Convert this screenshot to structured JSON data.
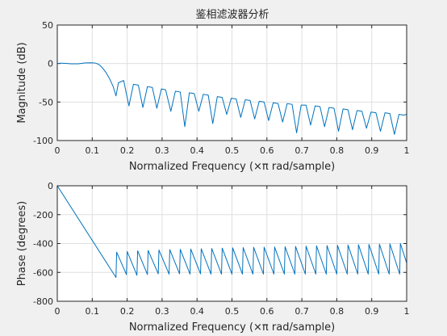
{
  "figure_title": "鉴相滤波器分析",
  "chart_data": [
    {
      "type": "line",
      "title": "鉴相滤波器分析",
      "xlabel": "Normalized Frequency  (×π rad/sample)",
      "ylabel": "Magnitude (dB)",
      "xlim": [
        0,
        1
      ],
      "ylim": [
        -100,
        50
      ],
      "xticks": [
        "0",
        "0.1",
        "0.2",
        "0.3",
        "0.4",
        "0.5",
        "0.6",
        "0.7",
        "0.8",
        "0.9",
        "1"
      ],
      "yticks": [
        "-100",
        "-50",
        "0",
        "50"
      ],
      "grid": true,
      "line_color": "#0072bd",
      "series": [
        {
          "x": [
            0,
            0.01,
            0.02,
            0.04,
            0.06,
            0.08,
            0.1,
            0.11,
            0.12,
            0.13,
            0.14,
            0.15,
            0.16,
            0.168,
            0.175,
            0.19,
            0.205,
            0.218,
            0.232,
            0.245,
            0.258,
            0.272,
            0.285,
            0.298,
            0.31,
            0.325,
            0.338,
            0.352,
            0.365,
            0.378,
            0.392,
            0.405,
            0.418,
            0.432,
            0.445,
            0.458,
            0.472,
            0.485,
            0.498,
            0.512,
            0.525,
            0.538,
            0.552,
            0.565,
            0.578,
            0.592,
            0.605,
            0.618,
            0.632,
            0.645,
            0.658,
            0.672,
            0.685,
            0.698,
            0.712,
            0.725,
            0.738,
            0.752,
            0.765,
            0.778,
            0.792,
            0.805,
            0.818,
            0.832,
            0.845,
            0.858,
            0.872,
            0.885,
            0.898,
            0.912,
            0.925,
            0.938,
            0.952,
            0.965,
            0.978,
            0.992,
            1.0
          ],
          "y": [
            0,
            0.5,
            0.3,
            -0.4,
            -0.3,
            0.8,
            1,
            0.5,
            -1.5,
            -6,
            -12,
            -20,
            -30,
            -42,
            -25,
            -22,
            -55,
            -27,
            -28,
            -57,
            -30,
            -31,
            -58,
            -33,
            -34,
            -62,
            -36,
            -37,
            -82,
            -38,
            -39,
            -62,
            -40,
            -41,
            -78,
            -43,
            -44,
            -66,
            -45,
            -46,
            -70,
            -47,
            -48,
            -72,
            -49,
            -50,
            -74,
            -51,
            -52,
            -76,
            -52,
            -53,
            -90,
            -54,
            -54,
            -80,
            -55,
            -56,
            -82,
            -57,
            -58,
            -88,
            -59,
            -60,
            -86,
            -61,
            -62,
            -84,
            -63,
            -64,
            -88,
            -64,
            -65,
            -92,
            -66,
            -67,
            -66
          ]
        }
      ]
    },
    {
      "type": "line",
      "title": "",
      "xlabel": "Normalized Frequency  (×π rad/sample)",
      "ylabel": "Phase (degrees)",
      "xlim": [
        0,
        1
      ],
      "ylim": [
        -800,
        0
      ],
      "xticks": [
        "0",
        "0.1",
        "0.2",
        "0.3",
        "0.4",
        "0.5",
        "0.6",
        "0.7",
        "0.8",
        "0.9",
        "1"
      ],
      "yticks": [
        "-800",
        "-600",
        "-400",
        "-200",
        "0"
      ],
      "grid": true,
      "line_color": "#0072bd",
      "series": [
        {
          "x": [
            0,
            0.168,
            0.17,
            0.198,
            0.2,
            0.228,
            0.23,
            0.258,
            0.26,
            0.289,
            0.291,
            0.32,
            0.322,
            0.35,
            0.352,
            0.38,
            0.382,
            0.41,
            0.412,
            0.44,
            0.442,
            0.47,
            0.472,
            0.5,
            0.502,
            0.53,
            0.532,
            0.56,
            0.562,
            0.59,
            0.592,
            0.62,
            0.622,
            0.65,
            0.652,
            0.68,
            0.682,
            0.71,
            0.712,
            0.74,
            0.742,
            0.77,
            0.772,
            0.8,
            0.802,
            0.83,
            0.832,
            0.86,
            0.862,
            0.89,
            0.892,
            0.92,
            0.922,
            0.95,
            0.952,
            0.98,
            0.982,
            1.0
          ],
          "y": [
            0,
            -635,
            -460,
            -615,
            -455,
            -620,
            -450,
            -615,
            -448,
            -610,
            -445,
            -612,
            -442,
            -610,
            -440,
            -612,
            -438,
            -610,
            -436,
            -612,
            -434,
            -612,
            -432,
            -612,
            -430,
            -612,
            -428,
            -612,
            -426,
            -612,
            -425,
            -612,
            -424,
            -612,
            -422,
            -612,
            -420,
            -612,
            -418,
            -612,
            -416,
            -612,
            -414,
            -612,
            -412,
            -612,
            -410,
            -612,
            -408,
            -612,
            -406,
            -612,
            -404,
            -612,
            -402,
            -612,
            -400,
            -535
          ]
        }
      ]
    }
  ]
}
